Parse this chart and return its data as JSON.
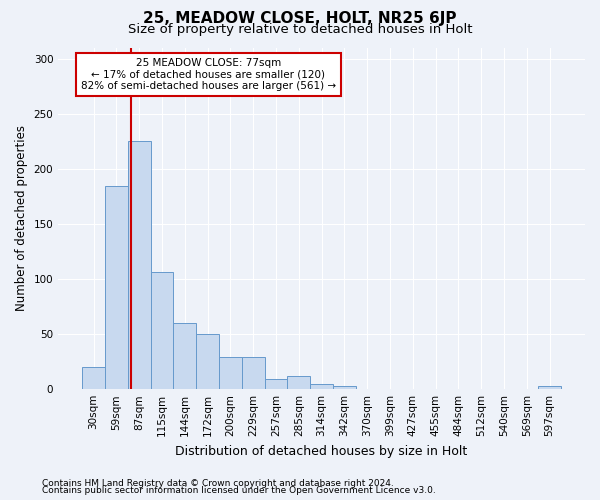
{
  "title1": "25, MEADOW CLOSE, HOLT, NR25 6JP",
  "title2": "Size of property relative to detached houses in Holt",
  "xlabel": "Distribution of detached houses by size in Holt",
  "ylabel": "Number of detached properties",
  "bar_labels": [
    "30sqm",
    "59sqm",
    "87sqm",
    "115sqm",
    "144sqm",
    "172sqm",
    "200sqm",
    "229sqm",
    "257sqm",
    "285sqm",
    "314sqm",
    "342sqm",
    "370sqm",
    "399sqm",
    "427sqm",
    "455sqm",
    "484sqm",
    "512sqm",
    "540sqm",
    "569sqm",
    "597sqm"
  ],
  "bar_values": [
    20,
    184,
    225,
    106,
    60,
    50,
    29,
    29,
    9,
    12,
    5,
    3,
    0,
    0,
    0,
    0,
    0,
    0,
    0,
    0,
    3
  ],
  "bar_color": "#c8d9ef",
  "bar_edgecolor": "#6699cc",
  "background_color": "#eef2f9",
  "grid_color": "#ffffff",
  "vline_color": "#cc0000",
  "annotation_line1": "25 MEADOW CLOSE: 77sqm",
  "annotation_line2": "← 17% of detached houses are smaller (120)",
  "annotation_line3": "82% of semi-detached houses are larger (561) →",
  "annotation_box_color": "#ffffff",
  "annotation_box_edgecolor": "#cc0000",
  "ylim": [
    0,
    310
  ],
  "yticks": [
    0,
    50,
    100,
    150,
    200,
    250,
    300
  ],
  "footer1": "Contains HM Land Registry data © Crown copyright and database right 2024.",
  "footer2": "Contains public sector information licensed under the Open Government Licence v3.0.",
  "title1_fontsize": 11,
  "title2_fontsize": 9.5,
  "xlabel_fontsize": 9,
  "ylabel_fontsize": 8.5,
  "tick_fontsize": 7.5,
  "annotation_fontsize": 7.5,
  "footer_fontsize": 6.5
}
